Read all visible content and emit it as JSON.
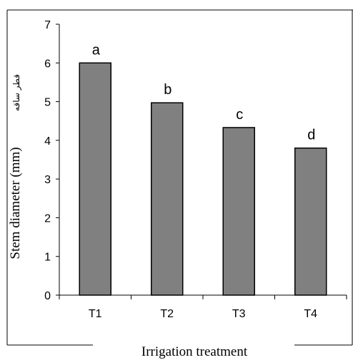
{
  "chart_data": {
    "type": "bar",
    "categories": [
      "T1",
      "T2",
      "T3",
      "T4"
    ],
    "values": [
      6.0,
      4.97,
      4.33,
      3.8
    ],
    "bar_labels": [
      "a",
      "b",
      "c",
      "d"
    ],
    "xlabel": "Irrigation treatment",
    "ylabel": "Stem diameter (mm)",
    "ylabel_alt": "قطر ساقه",
    "ylim": [
      0,
      7
    ],
    "yticks": [
      "0",
      "1",
      "2",
      "3",
      "4",
      "5",
      "6",
      "7"
    ],
    "grid": false,
    "bar_color": "#808080"
  }
}
